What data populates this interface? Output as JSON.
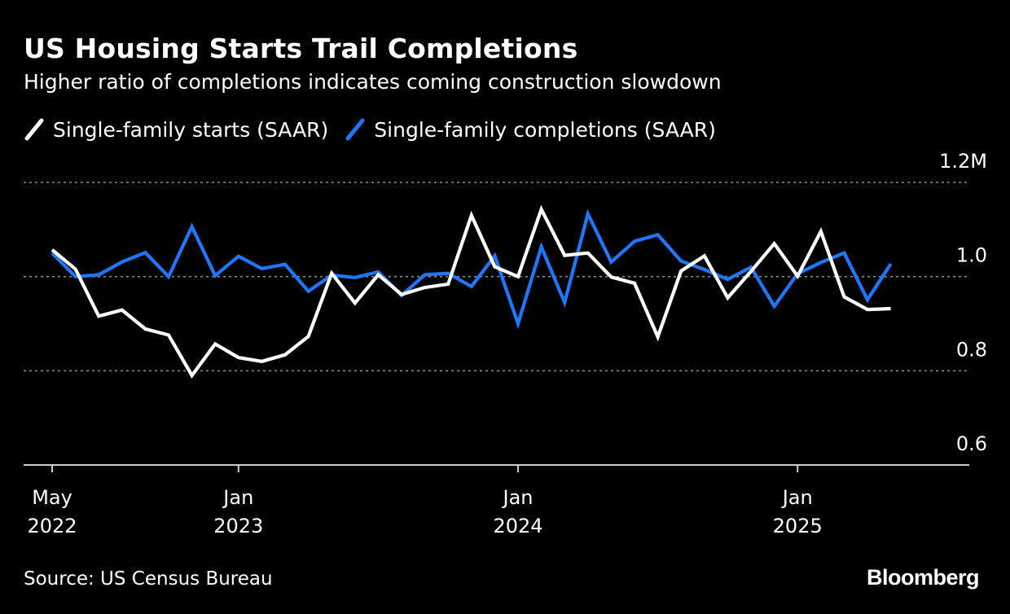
{
  "chart_data": {
    "type": "line",
    "title": "US Housing Starts Trail Completions",
    "subtitle": "Higher ratio of completions indicates coming construction slowdown",
    "x": [
      "2022-05",
      "2022-06",
      "2022-07",
      "2022-08",
      "2022-09",
      "2022-10",
      "2022-11",
      "2022-12",
      "2023-01",
      "2023-02",
      "2023-03",
      "2023-04",
      "2023-05",
      "2023-06",
      "2023-07",
      "2023-08",
      "2023-09",
      "2023-10",
      "2023-11",
      "2023-12",
      "2024-01",
      "2024-02",
      "2024-03",
      "2024-04",
      "2024-05",
      "2024-06",
      "2024-07",
      "2024-08",
      "2024-09",
      "2024-10",
      "2024-11",
      "2024-12",
      "2025-01",
      "2025-02",
      "2025-03",
      "2025-04",
      "2025-05"
    ],
    "series": [
      {
        "name": "Single-family starts (SAAR)",
        "color": "#ffffff",
        "values": [
          1.057,
          1.016,
          0.916,
          0.929,
          0.889,
          0.876,
          0.79,
          0.857,
          0.828,
          0.82,
          0.834,
          0.873,
          1.007,
          0.944,
          1.004,
          0.962,
          0.977,
          0.984,
          1.13,
          1.021,
          1.0,
          1.143,
          1.045,
          1.05,
          0.999,
          0.986,
          0.872,
          1.012,
          1.044,
          0.955,
          1.011,
          1.07,
          1.001,
          1.096,
          0.957,
          0.93,
          0.932
        ],
        "labels": []
      },
      {
        "name": "Single-family completions (SAAR)",
        "color": "#1e78ff",
        "values": [
          1.05,
          1.0,
          1.004,
          1.031,
          1.051,
          1.0,
          1.106,
          1.002,
          1.043,
          1.017,
          1.026,
          0.969,
          1.003,
          0.998,
          1.01,
          0.96,
          1.004,
          1.007,
          0.979,
          1.044,
          0.9,
          1.063,
          0.945,
          1.133,
          1.031,
          1.075,
          1.089,
          1.033,
          1.015,
          0.994,
          1.02,
          0.937,
          1.006,
          1.03,
          1.05,
          0.951,
          1.027
        ],
        "labels": []
      }
    ],
    "ylim": [
      0.6,
      1.2
    ],
    "yticks": [
      0.6,
      0.8,
      1.0,
      1.2
    ],
    "ytick_labels": [
      "0.6",
      "0.8",
      "1.0",
      "1.2M"
    ],
    "gridlines": [
      0.8,
      1.0,
      1.2
    ],
    "xticks": [
      {
        "index": 0,
        "line1": "May",
        "line2": "2022"
      },
      {
        "index": 8,
        "line1": "Jan",
        "line2": "2023"
      },
      {
        "index": 20,
        "line1": "Jan",
        "line2": "2024"
      },
      {
        "index": 32,
        "line1": "Jan",
        "line2": "2025"
      }
    ],
    "xlabel": "",
    "ylabel": "",
    "legend_position": "top-left",
    "grid": true
  },
  "footer": {
    "source": "Source: US Census Bureau",
    "brand": "Bloomberg"
  },
  "colors": {
    "background": "#000000",
    "starts": "#ffffff",
    "completions": "#1e78ff",
    "grid": "#8c8c8c",
    "axis": "#cccccc"
  }
}
